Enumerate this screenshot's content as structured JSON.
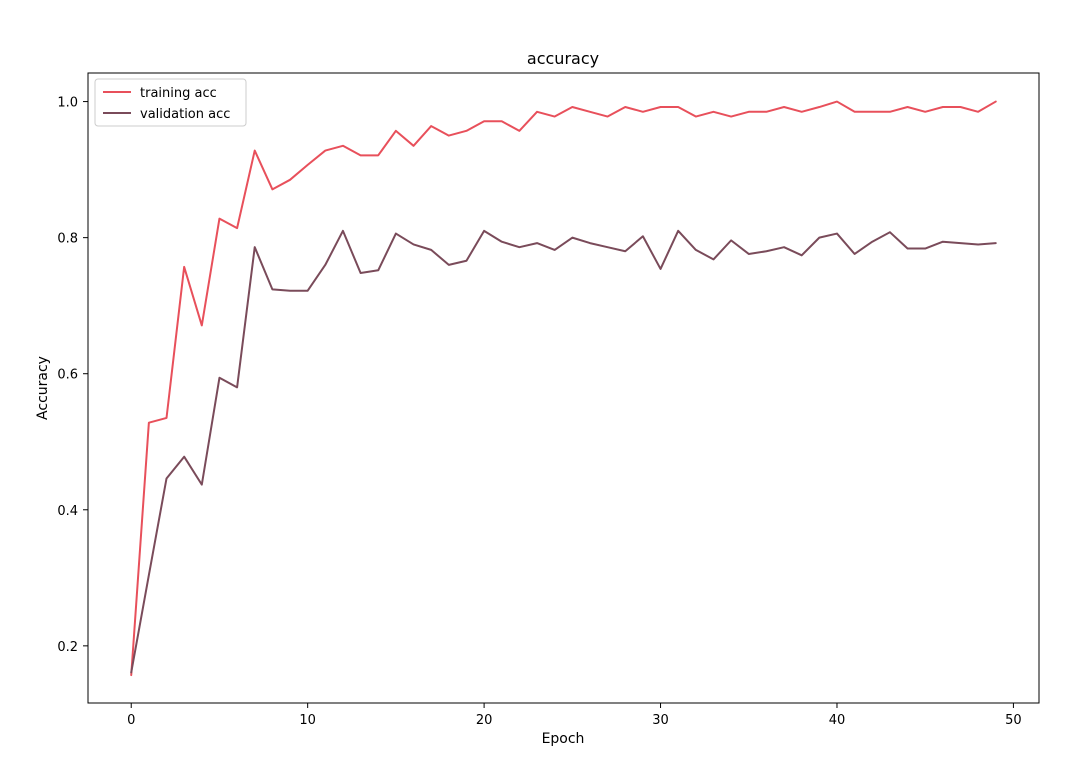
{
  "chart_data": {
    "type": "line",
    "title": "accuracy",
    "xlabel": "Epoch",
    "ylabel": "Accuracy",
    "xlim": [
      -2.45,
      51.45
    ],
    "ylim": [
      0.116,
      1.042
    ],
    "xticks": [
      0,
      10,
      20,
      30,
      40,
      50
    ],
    "yticks": [
      0.2,
      0.4,
      0.6,
      0.8,
      1.0
    ],
    "xtick_labels": [
      "0",
      "10",
      "20",
      "30",
      "40",
      "50"
    ],
    "ytick_labels": [
      "0.2",
      "0.4",
      "0.6",
      "0.8",
      "1.0"
    ],
    "grid": false,
    "legend": "top-left",
    "x": [
      0,
      1,
      2,
      3,
      4,
      5,
      6,
      7,
      8,
      9,
      10,
      11,
      12,
      13,
      14,
      15,
      16,
      17,
      18,
      19,
      20,
      21,
      22,
      23,
      24,
      25,
      26,
      27,
      28,
      29,
      30,
      31,
      32,
      33,
      34,
      35,
      36,
      37,
      38,
      39,
      40,
      41,
      42,
      43,
      44,
      45,
      46,
      47,
      48,
      49
    ],
    "series": [
      {
        "name": "training acc",
        "color": "#e8505b",
        "values": [
          0.157,
          0.528,
          0.535,
          0.757,
          0.671,
          0.828,
          0.814,
          0.928,
          0.871,
          0.885,
          0.907,
          0.928,
          0.935,
          0.921,
          0.921,
          0.957,
          0.935,
          0.964,
          0.95,
          0.957,
          0.971,
          0.971,
          0.957,
          0.985,
          0.978,
          0.992,
          0.985,
          0.978,
          0.992,
          0.985,
          0.992,
          0.992,
          0.978,
          0.985,
          0.978,
          0.985,
          0.985,
          0.992,
          0.985,
          0.992,
          1.0,
          0.985,
          0.985,
          0.985,
          0.992,
          0.985,
          0.992,
          0.992,
          0.985,
          1.0
        ]
      },
      {
        "name": "validation acc",
        "color": "#7a4b5a",
        "values": [
          0.161,
          0.304,
          0.446,
          0.478,
          0.437,
          0.594,
          0.58,
          0.786,
          0.724,
          0.722,
          0.722,
          0.76,
          0.81,
          0.748,
          0.752,
          0.806,
          0.79,
          0.782,
          0.76,
          0.766,
          0.81,
          0.794,
          0.786,
          0.792,
          0.782,
          0.8,
          0.792,
          0.786,
          0.78,
          0.802,
          0.754,
          0.81,
          0.782,
          0.768,
          0.796,
          0.776,
          0.78,
          0.786,
          0.774,
          0.8,
          0.806,
          0.776,
          0.794,
          0.808,
          0.784,
          0.784,
          0.794,
          0.792,
          0.79,
          0.792
        ]
      }
    ]
  }
}
